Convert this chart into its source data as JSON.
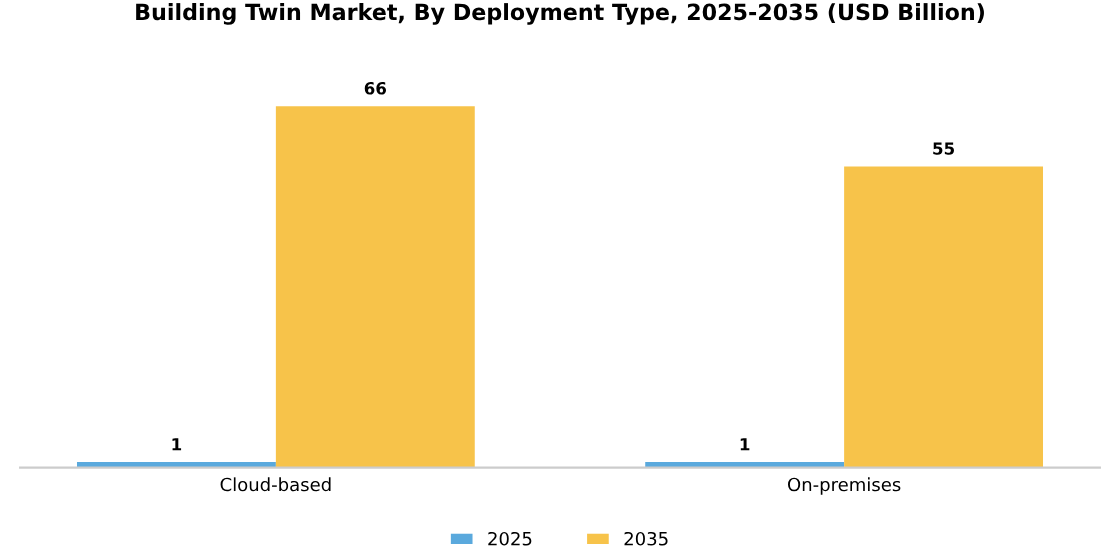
{
  "chart_data": {
    "type": "bar",
    "title": "Building Twin Market, By Deployment Type, 2025-2035 (USD Billion)",
    "categories": [
      "Cloud-based",
      "On-premises"
    ],
    "series": [
      {
        "name": "2025",
        "color": "#5aa9dd",
        "values": [
          1,
          1
        ]
      },
      {
        "name": "2035",
        "color": "#f7c34a",
        "values": [
          66,
          55
        ]
      }
    ],
    "data_labels": true,
    "legend": "bottom",
    "grid": false
  }
}
